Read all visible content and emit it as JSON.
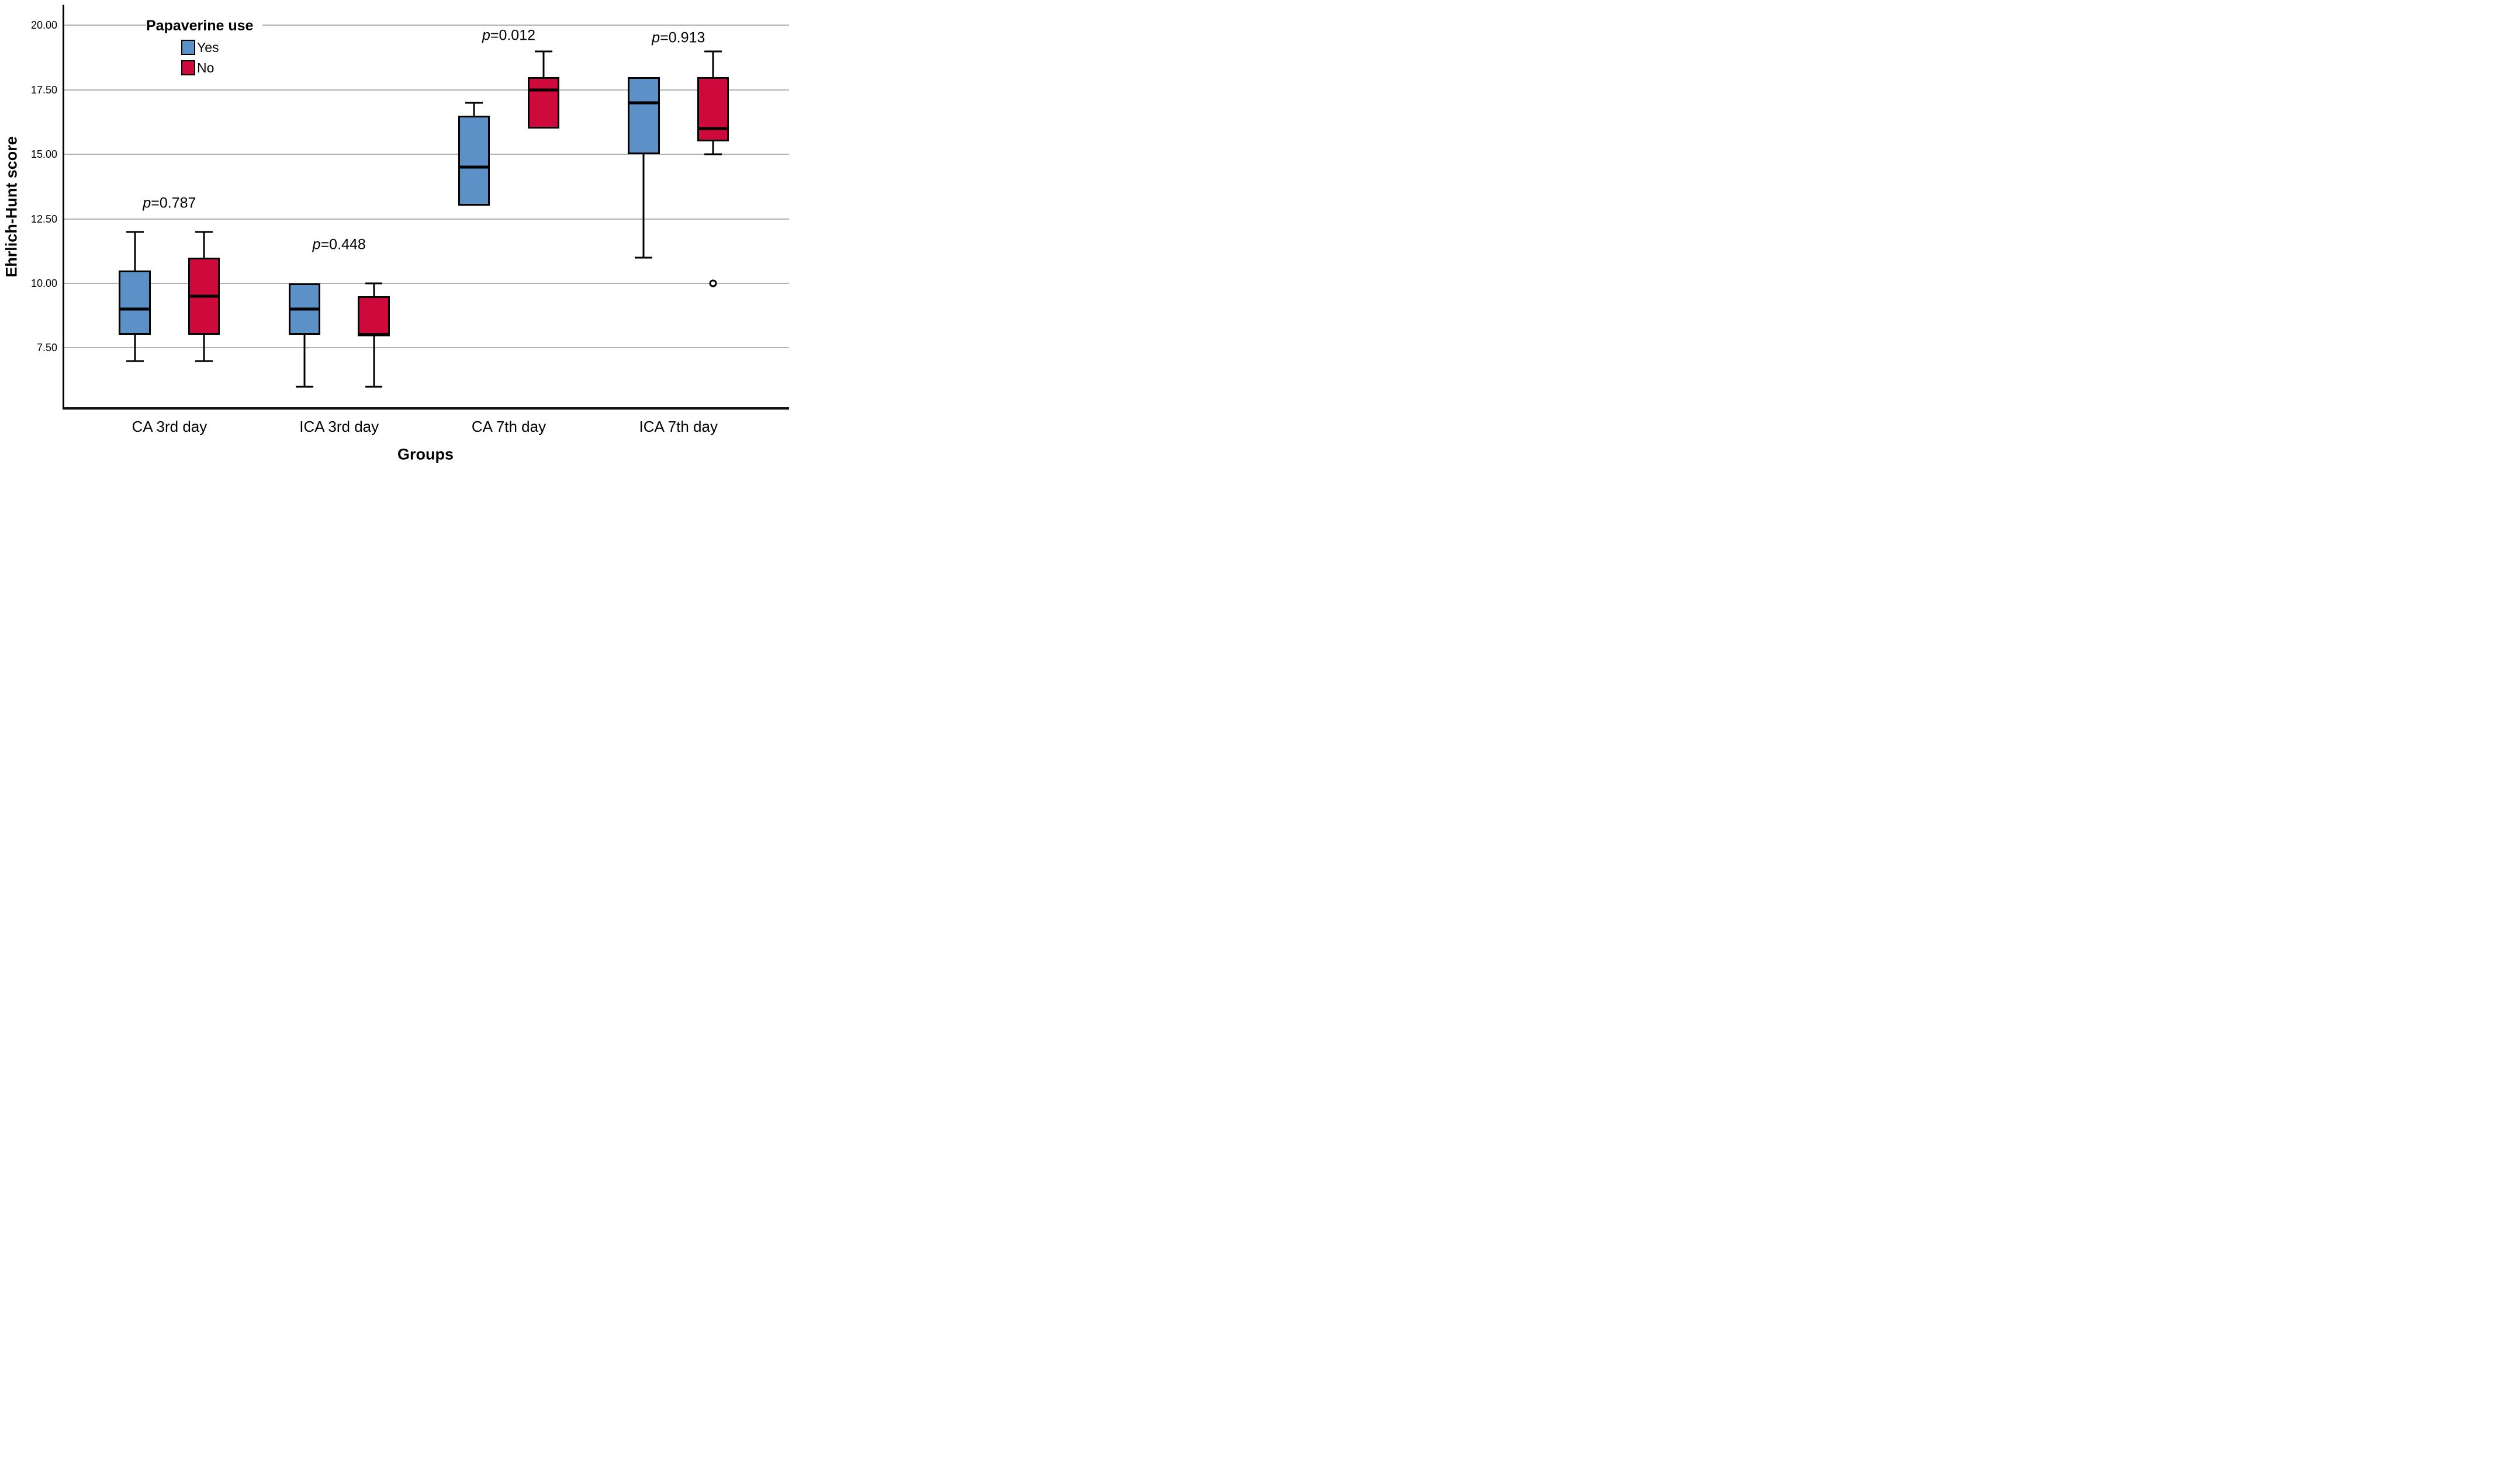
{
  "chart_data": {
    "type": "boxplot",
    "ylabel": "Ehrlich-Hunt score",
    "xlabel": "Groups",
    "categories": [
      "CA 3rd day",
      "ICA 3rd day",
      "CA 7th day",
      "ICA 7th day"
    ],
    "legend": {
      "title": "Papaverine use",
      "position": "top-left-inside",
      "entries": [
        {
          "label": "Yes",
          "color": "#5C91C7"
        },
        {
          "label": "No",
          "color": "#CE0A3C"
        }
      ]
    },
    "y_axis": {
      "ticks": [
        {
          "value": 20,
          "label": "20.00"
        },
        {
          "value": 17.5,
          "label": "17.50"
        },
        {
          "value": 15,
          "label": "15.00"
        },
        {
          "value": 12.5,
          "label": "12.50"
        },
        {
          "value": 10,
          "label": "10.00"
        },
        {
          "value": 7.5,
          "label": "7.50"
        }
      ],
      "grid": true
    },
    "ylim": [
      5.2,
      20.8
    ],
    "series": [
      {
        "name": "Yes",
        "color": "#5C91C7",
        "boxes": [
          {
            "low": 7,
            "q1": 8,
            "median": 9,
            "q3": 10.5,
            "high": 12,
            "outliers": []
          },
          {
            "low": 6,
            "q1": 8,
            "median": 9,
            "q3": 10,
            "high": 10,
            "outliers": []
          },
          {
            "low": 13,
            "q1": 13,
            "median": 14.5,
            "q3": 16.5,
            "high": 17,
            "outliers": []
          },
          {
            "low": 11,
            "q1": 15,
            "median": 17,
            "q3": 18,
            "high": 18,
            "outliers": []
          }
        ]
      },
      {
        "name": "No",
        "color": "#CE0A3C",
        "boxes": [
          {
            "low": 7,
            "q1": 8,
            "median": 9.5,
            "q3": 11,
            "high": 12,
            "outliers": []
          },
          {
            "low": 6,
            "q1": 8,
            "median": 8,
            "q3": 9.5,
            "high": 10,
            "outliers": []
          },
          {
            "low": 16,
            "q1": 16,
            "median": 17.5,
            "q3": 18,
            "high": 19,
            "outliers": []
          },
          {
            "low": 15,
            "q1": 15.5,
            "median": 16,
            "q3": 18,
            "high": 19,
            "outliers": [
              10
            ]
          }
        ]
      }
    ],
    "annotations": [
      {
        "italic": "p",
        "text": "=0.787",
        "group": 0,
        "y": 13.1
      },
      {
        "italic": "p",
        "text": "=0.448",
        "group": 1,
        "y": 11.5
      },
      {
        "italic": "p",
        "text": "=0.012",
        "group": 2,
        "y": 19.6
      },
      {
        "italic": "p",
        "text": "=0.913",
        "group": 3,
        "y": 19.5
      }
    ]
  }
}
